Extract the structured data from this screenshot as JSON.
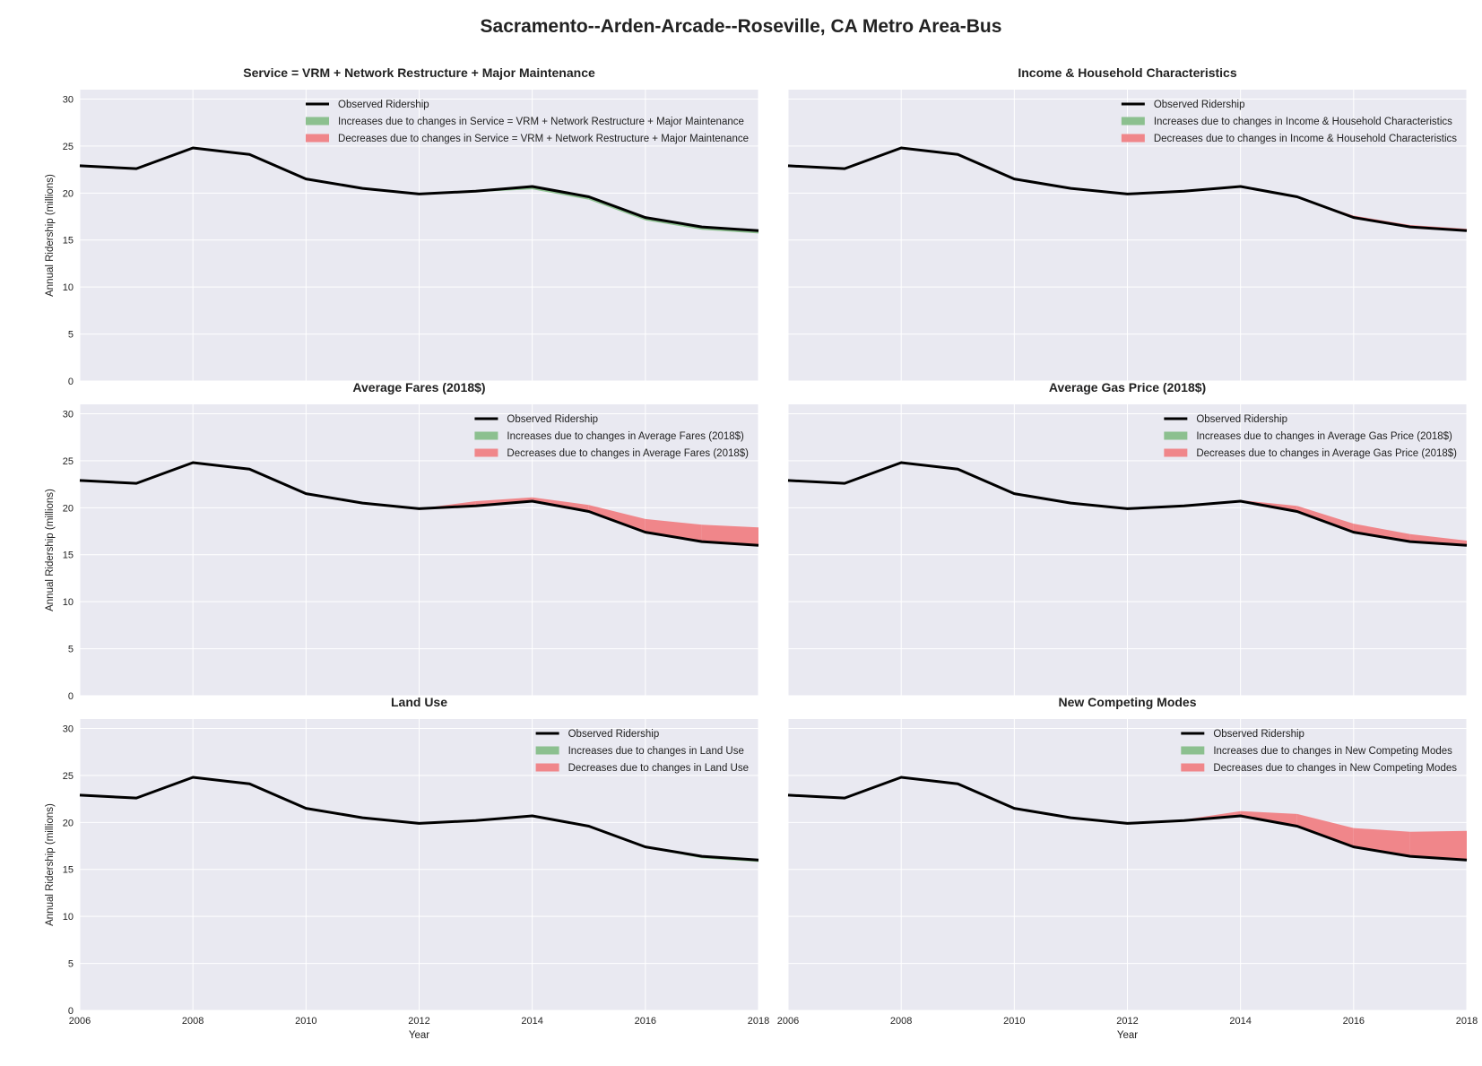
{
  "title": "Sacramento--Arden-Arcade--Roseville, CA Metro Area-Bus",
  "colors": {
    "plot_bg": "#e9e9f1",
    "grid": "#ffffff",
    "observed": "#000000",
    "increase": "#8cc08f",
    "decrease": "#f0868a"
  },
  "shared_axes": {
    "xlabel": "Year",
    "ylabel": "Annual Ridership (millions)",
    "xlim": [
      2006,
      2018
    ],
    "ylim": [
      0,
      31
    ],
    "xticks": [
      2006,
      2008,
      2010,
      2012,
      2014,
      2016,
      2018
    ],
    "yticks": [
      0,
      5,
      10,
      15,
      20,
      25,
      30
    ],
    "grid": true
  },
  "chart_data": [
    {
      "type": "area",
      "title": "Service = VRM + Network Restructure + Major Maintenance",
      "legend": [
        "Observed Ridership",
        "Increases due to changes in Service = VRM + Network Restructure + Major Maintenance",
        "Decreases due to changes in Service = VRM + Network Restructure + Major Maintenance"
      ],
      "legend_position": "top-right",
      "x": [
        2006,
        2007,
        2008,
        2009,
        2010,
        2011,
        2012,
        2013,
        2014,
        2015,
        2016,
        2017,
        2018
      ],
      "observed": [
        22.9,
        22.6,
        24.8,
        24.1,
        21.5,
        20.5,
        19.9,
        20.2,
        20.7,
        19.6,
        17.4,
        16.4,
        16.0
      ],
      "counterfactual": [
        22.9,
        22.6,
        24.8,
        24.1,
        21.5,
        20.5,
        19.9,
        20.1,
        20.4,
        19.3,
        17.1,
        16.1,
        15.7
      ]
    },
    {
      "type": "area",
      "title": "Income & Household Characteristics",
      "legend": [
        "Observed Ridership",
        "Increases due to changes in Income & Household Characteristics",
        "Decreases due to changes in Income & Household Characteristics"
      ],
      "legend_position": "top-right",
      "x": [
        2006,
        2007,
        2008,
        2009,
        2010,
        2011,
        2012,
        2013,
        2014,
        2015,
        2016,
        2017,
        2018
      ],
      "observed": [
        22.9,
        22.6,
        24.8,
        24.1,
        21.5,
        20.5,
        19.9,
        20.2,
        20.7,
        19.6,
        17.4,
        16.4,
        16.0
      ],
      "counterfactual": [
        22.9,
        22.6,
        24.8,
        24.1,
        21.5,
        20.5,
        19.9,
        20.2,
        20.7,
        19.6,
        17.6,
        16.6,
        16.2
      ]
    },
    {
      "type": "area",
      "title": "Average Fares (2018$)",
      "legend": [
        "Observed Ridership",
        "Increases due to changes in Average Fares (2018$)",
        "Decreases due to changes in Average Fares (2018$)"
      ],
      "legend_position": "top-right",
      "x": [
        2006,
        2007,
        2008,
        2009,
        2010,
        2011,
        2012,
        2013,
        2014,
        2015,
        2016,
        2017,
        2018
      ],
      "observed": [
        22.9,
        22.6,
        24.8,
        24.1,
        21.5,
        20.5,
        19.9,
        20.2,
        20.7,
        19.6,
        17.4,
        16.4,
        16.0
      ],
      "counterfactual": [
        22.9,
        22.6,
        24.8,
        24.1,
        21.5,
        20.5,
        19.9,
        20.7,
        21.1,
        20.3,
        18.8,
        18.2,
        17.9
      ]
    },
    {
      "type": "area",
      "title": "Average Gas Price (2018$)",
      "legend": [
        "Observed Ridership",
        "Increases due to changes in Average Gas Price (2018$)",
        "Decreases due to changes in Average Gas Price (2018$)"
      ],
      "legend_position": "top-right",
      "x": [
        2006,
        2007,
        2008,
        2009,
        2010,
        2011,
        2012,
        2013,
        2014,
        2015,
        2016,
        2017,
        2018
      ],
      "observed": [
        22.9,
        22.6,
        24.8,
        24.1,
        21.5,
        20.5,
        19.9,
        20.2,
        20.7,
        19.6,
        17.4,
        16.4,
        16.0
      ],
      "counterfactual": [
        22.9,
        22.6,
        24.8,
        24.1,
        21.5,
        20.5,
        19.9,
        20.2,
        20.8,
        20.2,
        18.3,
        17.2,
        16.5
      ]
    },
    {
      "type": "area",
      "title": "Land Use",
      "legend": [
        "Observed Ridership",
        "Increases due to changes in Land Use",
        "Decreases due to changes in Land Use"
      ],
      "legend_position": "top-right",
      "x": [
        2006,
        2007,
        2008,
        2009,
        2010,
        2011,
        2012,
        2013,
        2014,
        2015,
        2016,
        2017,
        2018
      ],
      "observed": [
        22.9,
        22.6,
        24.8,
        24.1,
        21.5,
        20.5,
        19.9,
        20.2,
        20.7,
        19.6,
        17.4,
        16.4,
        16.0
      ],
      "counterfactual": [
        22.9,
        22.6,
        24.8,
        24.1,
        21.5,
        20.5,
        19.9,
        20.2,
        20.7,
        19.6,
        17.3,
        16.2,
        15.8
      ]
    },
    {
      "type": "area",
      "title": "New Competing Modes",
      "legend": [
        "Observed Ridership",
        "Increases due to changes in New Competing Modes",
        "Decreases due to changes in New Competing Modes"
      ],
      "legend_position": "top-right",
      "x": [
        2006,
        2007,
        2008,
        2009,
        2010,
        2011,
        2012,
        2013,
        2014,
        2015,
        2016,
        2017,
        2018
      ],
      "observed": [
        22.9,
        22.6,
        24.8,
        24.1,
        21.5,
        20.5,
        19.9,
        20.2,
        20.7,
        19.6,
        17.4,
        16.4,
        16.0
      ],
      "counterfactual": [
        22.9,
        22.6,
        24.8,
        24.1,
        21.5,
        20.5,
        19.9,
        20.3,
        21.2,
        20.9,
        19.4,
        19.0,
        19.1
      ]
    }
  ]
}
